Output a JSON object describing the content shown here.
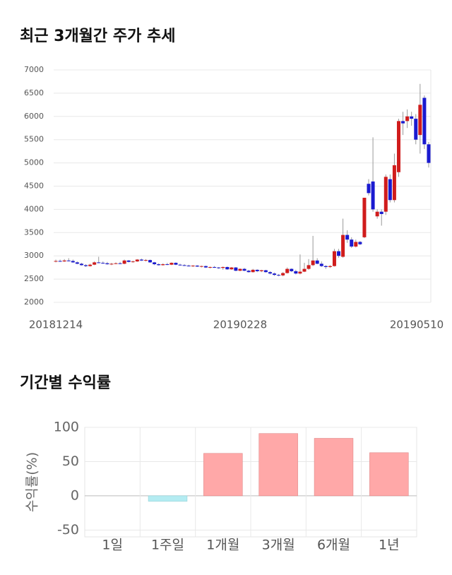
{
  "chart_data": [
    {
      "type": "candlestick",
      "title": "최근 3개월간 주가 추세",
      "categories": [
        "20181214",
        null,
        null,
        null,
        null,
        null,
        null,
        null,
        null,
        null,
        null,
        null,
        null,
        null,
        null,
        null,
        null,
        null,
        null,
        null,
        null,
        null,
        null,
        null,
        null,
        null,
        null,
        null,
        null,
        null,
        null,
        null,
        null,
        null,
        null,
        null,
        null,
        null,
        null,
        null,
        null,
        null,
        null,
        "20190228",
        null,
        null,
        null,
        null,
        null,
        null,
        null,
        null,
        null,
        null,
        null,
        null,
        null,
        null,
        null,
        null,
        null,
        null,
        null,
        null,
        null,
        null,
        null,
        null,
        null,
        null,
        null,
        null,
        null,
        null,
        null,
        null,
        null,
        null,
        null,
        null,
        null,
        null,
        null,
        null,
        null,
        null,
        null,
        "20190510"
      ],
      "open": [
        2880,
        2890,
        2880,
        2900,
        2890,
        2860,
        2830,
        2800,
        2780,
        2810,
        2860,
        2850,
        2840,
        2820,
        2830,
        2840,
        2830,
        2900,
        2870,
        2880,
        2920,
        2900,
        2910,
        2860,
        2820,
        2800,
        2820,
        2810,
        2850,
        2810,
        2800,
        2790,
        2780,
        2790,
        2770,
        2780,
        2750,
        2760,
        2750,
        2740,
        2760,
        2710,
        2750,
        2680,
        2720,
        2680,
        2650,
        2700,
        2670,
        2690,
        2650,
        2620,
        2590,
        2580,
        2630,
        2720,
        2670,
        2620,
        2660,
        2720,
        2800,
        2900,
        2830,
        2780,
        2760,
        2780,
        3100,
        2980,
        3450,
        3350,
        3200,
        3300,
        3400,
        4550,
        4600,
        3850,
        3950,
        3950,
        4650,
        4200,
        4800,
        5900,
        5900,
        6000,
        5950,
        5600,
        6400,
        5400
      ],
      "high": [
        2920,
        2920,
        2930,
        2950,
        2920,
        2880,
        2850,
        2820,
        2830,
        2880,
        2980,
        2880,
        2870,
        2850,
        2860,
        2870,
        2920,
        2910,
        2900,
        2930,
        2940,
        2930,
        2920,
        2870,
        2840,
        2840,
        2850,
        2860,
        2860,
        2830,
        2820,
        2810,
        2800,
        2800,
        2790,
        2790,
        2770,
        2780,
        2760,
        2770,
        2770,
        2760,
        2760,
        2730,
        2740,
        2700,
        2720,
        2710,
        2700,
        2700,
        2670,
        2640,
        2610,
        2650,
        2750,
        2730,
        2700,
        3030,
        2850,
        2930,
        3430,
        2950,
        2880,
        2800,
        2800,
        3150,
        3150,
        3800,
        3550,
        3400,
        3350,
        3320,
        4250,
        4650,
        5550,
        4000,
        4000,
        4750,
        4750,
        5200,
        5950,
        6100,
        6150,
        6100,
        6050,
        6700,
        6450,
        5450
      ],
      "low": [
        2860,
        2870,
        2870,
        2880,
        2850,
        2820,
        2790,
        2760,
        2770,
        2800,
        2840,
        2830,
        2810,
        2800,
        2820,
        2820,
        2820,
        2860,
        2850,
        2870,
        2890,
        2880,
        2850,
        2800,
        2790,
        2790,
        2800,
        2800,
        2800,
        2790,
        2780,
        2770,
        2760,
        2760,
        2750,
        2740,
        2730,
        2740,
        2720,
        2700,
        2700,
        2700,
        2670,
        2670,
        2670,
        2640,
        2640,
        2650,
        2650,
        2640,
        2600,
        2570,
        2560,
        2560,
        2620,
        2650,
        2600,
        2600,
        2650,
        2700,
        2780,
        2820,
        2760,
        2720,
        2740,
        2770,
        2960,
        2960,
        3280,
        3170,
        3180,
        3230,
        3380,
        4300,
        3950,
        3800,
        3650,
        3880,
        4150,
        4150,
        4700,
        5600,
        5750,
        5800,
        5400,
        5200,
        5300,
        4900
      ],
      "close": [
        2890,
        2880,
        2900,
        2890,
        2860,
        2830,
        2800,
        2780,
        2810,
        2860,
        2850,
        2840,
        2820,
        2830,
        2840,
        2830,
        2900,
        2870,
        2880,
        2920,
        2900,
        2910,
        2860,
        2820,
        2800,
        2820,
        2810,
        2850,
        2810,
        2800,
        2790,
        2780,
        2790,
        2770,
        2780,
        2750,
        2760,
        2750,
        2740,
        2760,
        2710,
        2750,
        2680,
        2720,
        2680,
        2650,
        2700,
        2670,
        2690,
        2650,
        2620,
        2590,
        2580,
        2630,
        2720,
        2670,
        2620,
        2660,
        2720,
        2800,
        2900,
        2830,
        2780,
        2760,
        2780,
        3100,
        3000,
        3450,
        3350,
        3200,
        3300,
        3250,
        4250,
        4350,
        4000,
        3950,
        3900,
        4700,
        4200,
        4950,
        5900,
        5850,
        6000,
        5950,
        5500,
        6250,
        5400,
        5000
      ],
      "up_color": "#d01c1c",
      "down_color": "#1a1ad0",
      "ylim": [
        2000,
        7000
      ],
      "yticks": [
        2000,
        2500,
        3000,
        3500,
        4000,
        4500,
        5000,
        5500,
        6000,
        6500,
        7000
      ],
      "grid": true
    },
    {
      "type": "bar",
      "title": "기간별 수익률",
      "y_label": "수익률(%)",
      "categories": [
        "1일",
        "1주일",
        "1개월",
        "3개월",
        "6개월",
        "1년"
      ],
      "values": [
        0,
        -8,
        62,
        91,
        84,
        63
      ],
      "positive_color": "#ffa8a8",
      "negative_color": "#b4ecf2",
      "ylim": [
        -60,
        100
      ],
      "yticks": [
        -50,
        0,
        50,
        100
      ],
      "grid": true
    }
  ]
}
